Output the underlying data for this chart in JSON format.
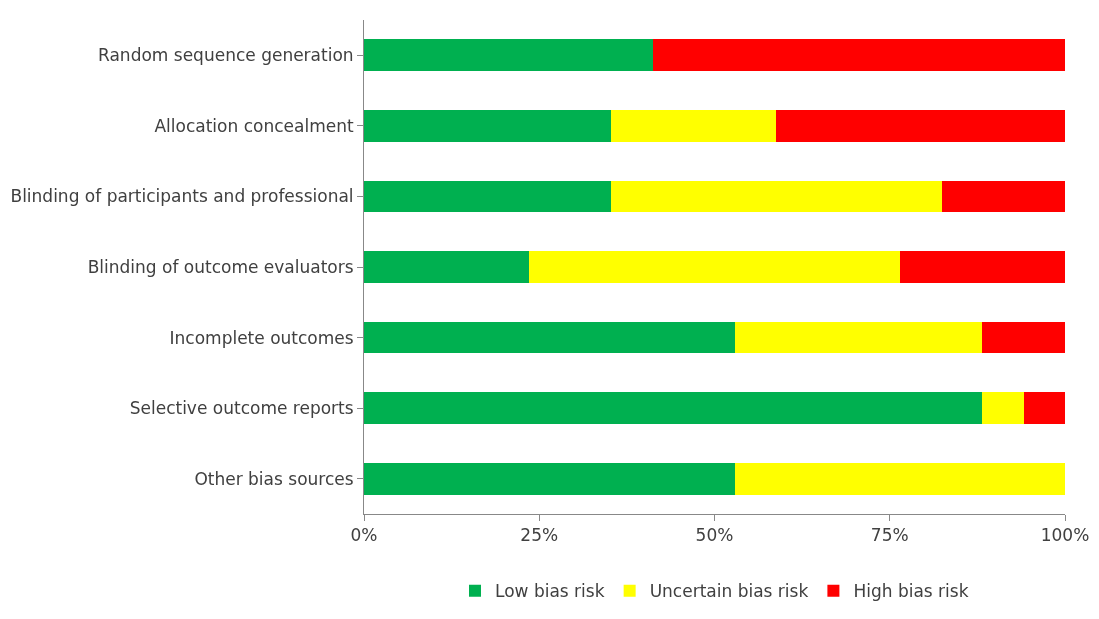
{
  "chart_data": {
    "type": "bar",
    "orientation": "horizontal",
    "stacked": true,
    "categories": [
      "Random sequence generation",
      "Allocation concealment",
      "Blinding of participants and professional",
      "Blinding of outcome evaluators",
      "Incomplete outcomes",
      "Selective outcome reports",
      "Other bias sources"
    ],
    "series": [
      {
        "name": "Low bias risk",
        "color": "#00b050",
        "values": [
          41.2,
          35.3,
          35.3,
          23.5,
          52.9,
          88.2,
          52.9
        ]
      },
      {
        "name": "Uncertain bias risk",
        "color": "#ffff00",
        "values": [
          0,
          23.5,
          47.1,
          52.9,
          35.3,
          5.9,
          47.1
        ]
      },
      {
        "name": "High bias risk",
        "color": "#ff0000",
        "values": [
          58.8,
          41.2,
          17.6,
          23.6,
          11.8,
          5.9,
          0
        ]
      }
    ],
    "xlim": [
      0,
      100
    ],
    "xticks": [
      {
        "value": 0,
        "label": "0%"
      },
      {
        "value": 25,
        "label": "25%"
      },
      {
        "value": 50,
        "label": "50%"
      },
      {
        "value": 75,
        "label": "75%"
      },
      {
        "value": 100,
        "label": "100%"
      }
    ],
    "legend": "bottom"
  }
}
